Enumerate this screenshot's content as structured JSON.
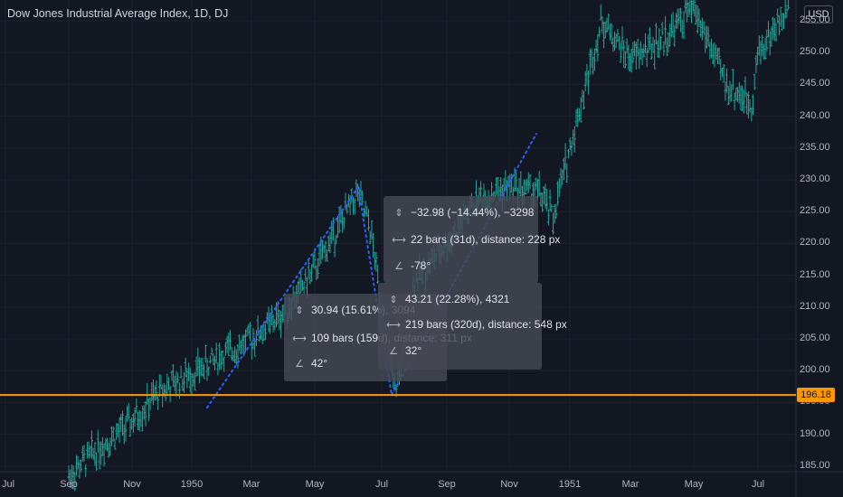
{
  "header": {
    "title": "Dow Jones Industrial Average Index, 1D, DJ",
    "currency": "USD"
  },
  "price_line": {
    "value": "196.18",
    "color": "#ff9800"
  },
  "colors": {
    "up": "#26a69a",
    "down": "#26a69a",
    "trendline": "#2962ff",
    "background": "#131722"
  },
  "icons": {
    "price_range": "vertical-range-icon",
    "bar_range": "horizontal-range-icon",
    "angle": "angle-icon"
  },
  "measures": [
    {
      "price": "30.94 (15.61%), 3094",
      "bars": "109 bars (159d), distance: 311 px",
      "angle": "42°"
    },
    {
      "price": "−32.98 (−14.44%), −3298",
      "bars": "22 bars (31d), distance: 228 px",
      "angle": "-78°"
    },
    {
      "price": "43.21 (22.28%), 4321",
      "bars": "219 bars (320d), distance: 548 px",
      "angle": "32°"
    }
  ],
  "chart_data": {
    "type": "ohlc",
    "title": "Dow Jones Industrial Average Index, 1D, DJ",
    "ylim": [
      183,
      258
    ],
    "yticks": [
      "185.00",
      "190.00",
      "195.00",
      "200.00",
      "205.00",
      "210.00",
      "215.00",
      "220.00",
      "225.00",
      "230.00",
      "235.00",
      "240.00",
      "245.00",
      "250.00",
      "255.00"
    ],
    "xticks": [
      "Jul",
      "Sep",
      "Nov",
      "1950",
      "Mar",
      "May",
      "Jul",
      "Sep",
      "Nov",
      "1951",
      "Mar",
      "May",
      "Jul"
    ],
    "keypoints": [
      {
        "x": "1949-09",
        "y": 183.5
      },
      {
        "x": "1949-10",
        "y": 188.0
      },
      {
        "x": "1949-11",
        "y": 192.0
      },
      {
        "x": "1949-12",
        "y": 197.0
      },
      {
        "x": "1950-01",
        "y": 199.5
      },
      {
        "x": "1950-02",
        "y": 202.5
      },
      {
        "x": "1950-03",
        "y": 205.0
      },
      {
        "x": "1950-04",
        "y": 209.0
      },
      {
        "x": "1950-05",
        "y": 216.0
      },
      {
        "x": "1950-06-09",
        "y": 228.0
      },
      {
        "x": "1950-06-21",
        "y": 222.0
      },
      {
        "x": "1950-07-13",
        "y": 196.5
      },
      {
        "x": "1950-07-25",
        "y": 205.0
      },
      {
        "x": "1950-08",
        "y": 214.0
      },
      {
        "x": "1950-09",
        "y": 220.0
      },
      {
        "x": "1950-10",
        "y": 227.0
      },
      {
        "x": "1950-11",
        "y": 229.0
      },
      {
        "x": "1950-12",
        "y": 228.0
      },
      {
        "x": "1950-12-15",
        "y": 224.0
      },
      {
        "x": "1951-01",
        "y": 235.0
      },
      {
        "x": "1951-02",
        "y": 255.0
      },
      {
        "x": "1951-03",
        "y": 249.0
      },
      {
        "x": "1951-04",
        "y": 252.0
      },
      {
        "x": "1951-05",
        "y": 257.0
      },
      {
        "x": "1951-06",
        "y": 245.0
      },
      {
        "x": "1951-06-25",
        "y": 242.0
      },
      {
        "x": "1951-07",
        "y": 250.0
      },
      {
        "x": "1951-08",
        "y": 257.0
      }
    ]
  }
}
